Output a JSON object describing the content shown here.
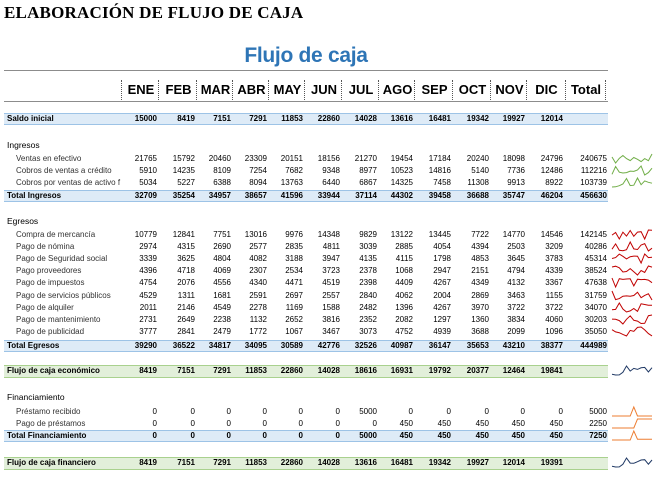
{
  "document_title": "ELABORACIÓN DE FLUJO DE CAJA",
  "sheet_title": "Flujo de caja",
  "months": [
    "ENE",
    "FEB",
    "MAR",
    "ABR",
    "MAY",
    "JUN",
    "JUL",
    "AGO",
    "SEP",
    "OCT",
    "NOV",
    "DIC",
    "Total"
  ],
  "saldo_inicial": {
    "label": "Saldo inicial",
    "values": [
      "15000",
      "8419",
      "7151",
      "7291",
      "11853",
      "22860",
      "14028",
      "13616",
      "16481",
      "19342",
      "19927",
      "12014"
    ]
  },
  "ingresos": {
    "heading": "Ingresos",
    "rows": [
      {
        "label": "Ventas en efectivo",
        "values": [
          "21765",
          "15792",
          "20460",
          "23309",
          "20151",
          "18156",
          "21270",
          "19454",
          "17184",
          "20240",
          "18098",
          "24796"
        ],
        "total": "240675",
        "color": "#70ad47"
      },
      {
        "label": "Cobros de ventas a crédito",
        "values": [
          "5910",
          "14235",
          "8109",
          "7254",
          "7682",
          "9348",
          "8977",
          "10523",
          "14816",
          "5140",
          "7736",
          "12486"
        ],
        "total": "112216",
        "color": "#70ad47"
      },
      {
        "label": "Cobros por ventas de activo f",
        "values": [
          "5034",
          "5227",
          "6388",
          "8094",
          "13763",
          "6440",
          "6867",
          "14325",
          "7458",
          "11308",
          "9913",
          "8922"
        ],
        "total": "103739",
        "color": "#70ad47"
      }
    ],
    "total": {
      "label": "Total Ingresos",
      "values": [
        "32709",
        "35254",
        "34957",
        "38657",
        "41596",
        "33944",
        "37114",
        "44302",
        "39458",
        "36688",
        "35747",
        "46204"
      ],
      "total": "456630"
    }
  },
  "egresos": {
    "heading": "Egresos",
    "rows": [
      {
        "label": "Compra de mercancía",
        "values": [
          "10779",
          "12841",
          "7751",
          "13016",
          "9976",
          "14348",
          "9829",
          "13122",
          "13445",
          "7722",
          "14770",
          "14546"
        ],
        "total": "142145",
        "color": "#c00000"
      },
      {
        "label": "Pago de nómina",
        "values": [
          "2974",
          "4315",
          "2690",
          "2577",
          "2835",
          "4811",
          "3039",
          "2885",
          "4054",
          "4394",
          "2503",
          "3209"
        ],
        "total": "40286",
        "color": "#c00000"
      },
      {
        "label": "Pago de Seguridad social",
        "values": [
          "3339",
          "3625",
          "4804",
          "4082",
          "3188",
          "3947",
          "4135",
          "4115",
          "1798",
          "4853",
          "3645",
          "3783"
        ],
        "total": "45314",
        "color": "#c00000"
      },
      {
        "label": "Pago proveedores",
        "values": [
          "4396",
          "4718",
          "4069",
          "2307",
          "2534",
          "3723",
          "2378",
          "1068",
          "2947",
          "2151",
          "4794",
          "4339"
        ],
        "total": "38524",
        "color": "#c00000"
      },
      {
        "label": "Pago de impuestos",
        "values": [
          "4754",
          "2076",
          "4556",
          "4340",
          "4471",
          "4519",
          "2398",
          "4409",
          "4267",
          "4349",
          "4132",
          "3367"
        ],
        "total": "47638",
        "color": "#c00000"
      },
      {
        "label": "Pago de servicios públicos",
        "values": [
          "4529",
          "1311",
          "1681",
          "2591",
          "2697",
          "2557",
          "2840",
          "4062",
          "2004",
          "2869",
          "3463",
          "1155"
        ],
        "total": "31759",
        "color": "#c00000"
      },
      {
        "label": "Pago de alquiler",
        "values": [
          "2011",
          "2146",
          "4549",
          "2278",
          "1169",
          "1588",
          "2482",
          "1396",
          "4267",
          "3970",
          "3722",
          "3722"
        ],
        "total": "34070",
        "color": "#c00000"
      },
      {
        "label": "Pago de mantenimiento",
        "values": [
          "2731",
          "2649",
          "2238",
          "1132",
          "2652",
          "3816",
          "2352",
          "2082",
          "1297",
          "1360",
          "3834",
          "4060"
        ],
        "total": "30203",
        "color": "#c00000"
      },
      {
        "label": "Pago de publicidad",
        "values": [
          "3777",
          "2841",
          "2479",
          "1772",
          "1067",
          "3467",
          "3073",
          "4752",
          "4939",
          "3688",
          "2099",
          "1096"
        ],
        "total": "35050",
        "color": "#c00000"
      }
    ],
    "total": {
      "label": "Total Egresos",
      "values": [
        "39290",
        "36522",
        "34817",
        "34095",
        "30589",
        "42776",
        "32526",
        "40987",
        "36147",
        "35653",
        "43210",
        "38377"
      ],
      "total": "444989"
    }
  },
  "flujo_economico": {
    "label": "Flujo de caja económico",
    "values": [
      "8419",
      "7151",
      "7291",
      "11853",
      "22860",
      "14028",
      "18616",
      "16931",
      "19792",
      "20377",
      "12464",
      "19841"
    ],
    "color": "#1f3864"
  },
  "financiamiento": {
    "heading": "Financiamiento",
    "rows": [
      {
        "label": "Préstamo recibido",
        "values": [
          "0",
          "0",
          "0",
          "0",
          "0",
          "0",
          "5000",
          "0",
          "0",
          "0",
          "0",
          "0"
        ],
        "total": "5000",
        "color": "#ed7d31"
      },
      {
        "label": "Pago de préstamos",
        "values": [
          "0",
          "0",
          "0",
          "0",
          "0",
          "0",
          "0",
          "450",
          "450",
          "450",
          "450",
          "450"
        ],
        "total": "2250",
        "color": "#ed7d31"
      }
    ],
    "total": {
      "label": "Total Financiamiento",
      "values": [
        "0",
        "0",
        "0",
        "0",
        "0",
        "0",
        "5000",
        "450",
        "450",
        "450",
        "450",
        "450"
      ],
      "total": "7250",
      "color": "#ed7d31"
    }
  },
  "flujo_financiero": {
    "label": "Flujo de caja financiero",
    "values": [
      "8419",
      "7151",
      "7291",
      "11853",
      "22860",
      "14028",
      "13616",
      "16481",
      "19342",
      "19927",
      "12014",
      "19391"
    ],
    "color": "#1f3864"
  }
}
